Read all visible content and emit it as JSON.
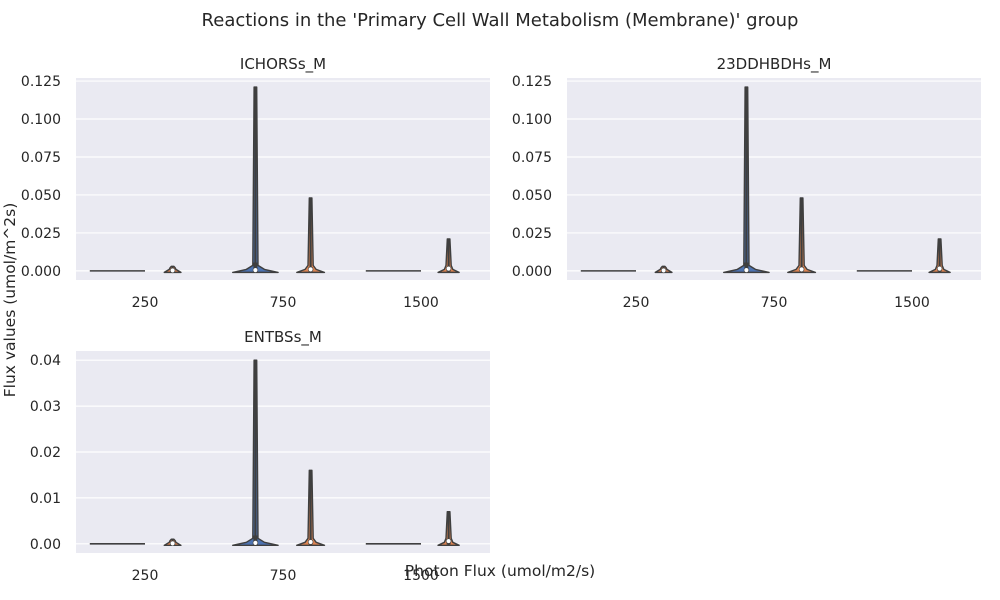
{
  "figure": {
    "suptitle": "Reactions in the 'Primary Cell Wall Metabolism (Membrane)' group",
    "xlabel": "Photon Flux (umol/m2/s)",
    "ylabel": "Flux values (umol/m^2s)"
  },
  "colors": {
    "background_panel": "#EAEAF2",
    "grid": "#FFFFFF",
    "series_left": "#4C72B0",
    "series_right": "#DD8452",
    "outline": "#3F3F3F"
  },
  "chart_data": [
    {
      "type": "violin",
      "title": "ICHORSs_M",
      "categories": [
        "250",
        "750",
        "1500"
      ],
      "ylim": [
        -0.006,
        0.127
      ],
      "yticks": [
        0.0,
        0.025,
        0.05,
        0.075,
        0.1,
        0.125
      ],
      "ytick_labels": [
        "0.000",
        "0.025",
        "0.050",
        "0.075",
        "0.100",
        "0.125"
      ],
      "grid": true,
      "series": [
        {
          "values": [
            {
              "category": "250",
              "min": 0.0,
              "max": 0.0,
              "median": 0.0
            },
            {
              "category": "750",
              "min": 0.0,
              "max": 0.121,
              "median": 0.0005
            },
            {
              "category": "1500",
              "min": 0.0,
              "max": 0.0,
              "median": 0.0
            }
          ]
        },
        {
          "values": [
            {
              "category": "250",
              "min": 0.0,
              "max": 0.003,
              "median": 0.0003
            },
            {
              "category": "750",
              "min": 0.0,
              "max": 0.048,
              "median": 0.001
            },
            {
              "category": "1500",
              "min": 0.0,
              "max": 0.021,
              "median": 0.0015
            }
          ]
        }
      ]
    },
    {
      "type": "violin",
      "title": "23DDHBDHs_M",
      "categories": [
        "250",
        "750",
        "1500"
      ],
      "ylim": [
        -0.006,
        0.127
      ],
      "yticks": [
        0.0,
        0.025,
        0.05,
        0.075,
        0.1,
        0.125
      ],
      "ytick_labels": [
        "0.000",
        "0.025",
        "0.050",
        "0.075",
        "0.100",
        "0.125"
      ],
      "grid": true,
      "series": [
        {
          "values": [
            {
              "category": "250",
              "min": 0.0,
              "max": 0.0,
              "median": 0.0
            },
            {
              "category": "750",
              "min": 0.0,
              "max": 0.121,
              "median": 0.0005
            },
            {
              "category": "1500",
              "min": 0.0,
              "max": 0.0,
              "median": 0.0
            }
          ]
        },
        {
          "values": [
            {
              "category": "250",
              "min": 0.0,
              "max": 0.003,
              "median": 0.0003
            },
            {
              "category": "750",
              "min": 0.0,
              "max": 0.048,
              "median": 0.001
            },
            {
              "category": "1500",
              "min": 0.0,
              "max": 0.021,
              "median": 0.0015
            }
          ]
        }
      ]
    },
    {
      "type": "violin",
      "title": "ENTBSs_M",
      "categories": [
        "250",
        "750",
        "1500"
      ],
      "ylim": [
        -0.002,
        0.042
      ],
      "yticks": [
        0.0,
        0.01,
        0.02,
        0.03,
        0.04
      ],
      "ytick_labels": [
        "0.00",
        "0.01",
        "0.02",
        "0.03",
        "0.04"
      ],
      "grid": true,
      "series": [
        {
          "values": [
            {
              "category": "250",
              "min": 0.0,
              "max": 0.0,
              "median": 0.0
            },
            {
              "category": "750",
              "min": 0.0,
              "max": 0.04,
              "median": 0.0002
            },
            {
              "category": "1500",
              "min": 0.0,
              "max": 0.0,
              "median": 0.0
            }
          ]
        },
        {
          "values": [
            {
              "category": "250",
              "min": 0.0,
              "max": 0.001,
              "median": 0.0001
            },
            {
              "category": "750",
              "min": 0.0,
              "max": 0.016,
              "median": 0.0004
            },
            {
              "category": "1500",
              "min": 0.0,
              "max": 0.007,
              "median": 0.0006
            }
          ]
        }
      ]
    }
  ]
}
